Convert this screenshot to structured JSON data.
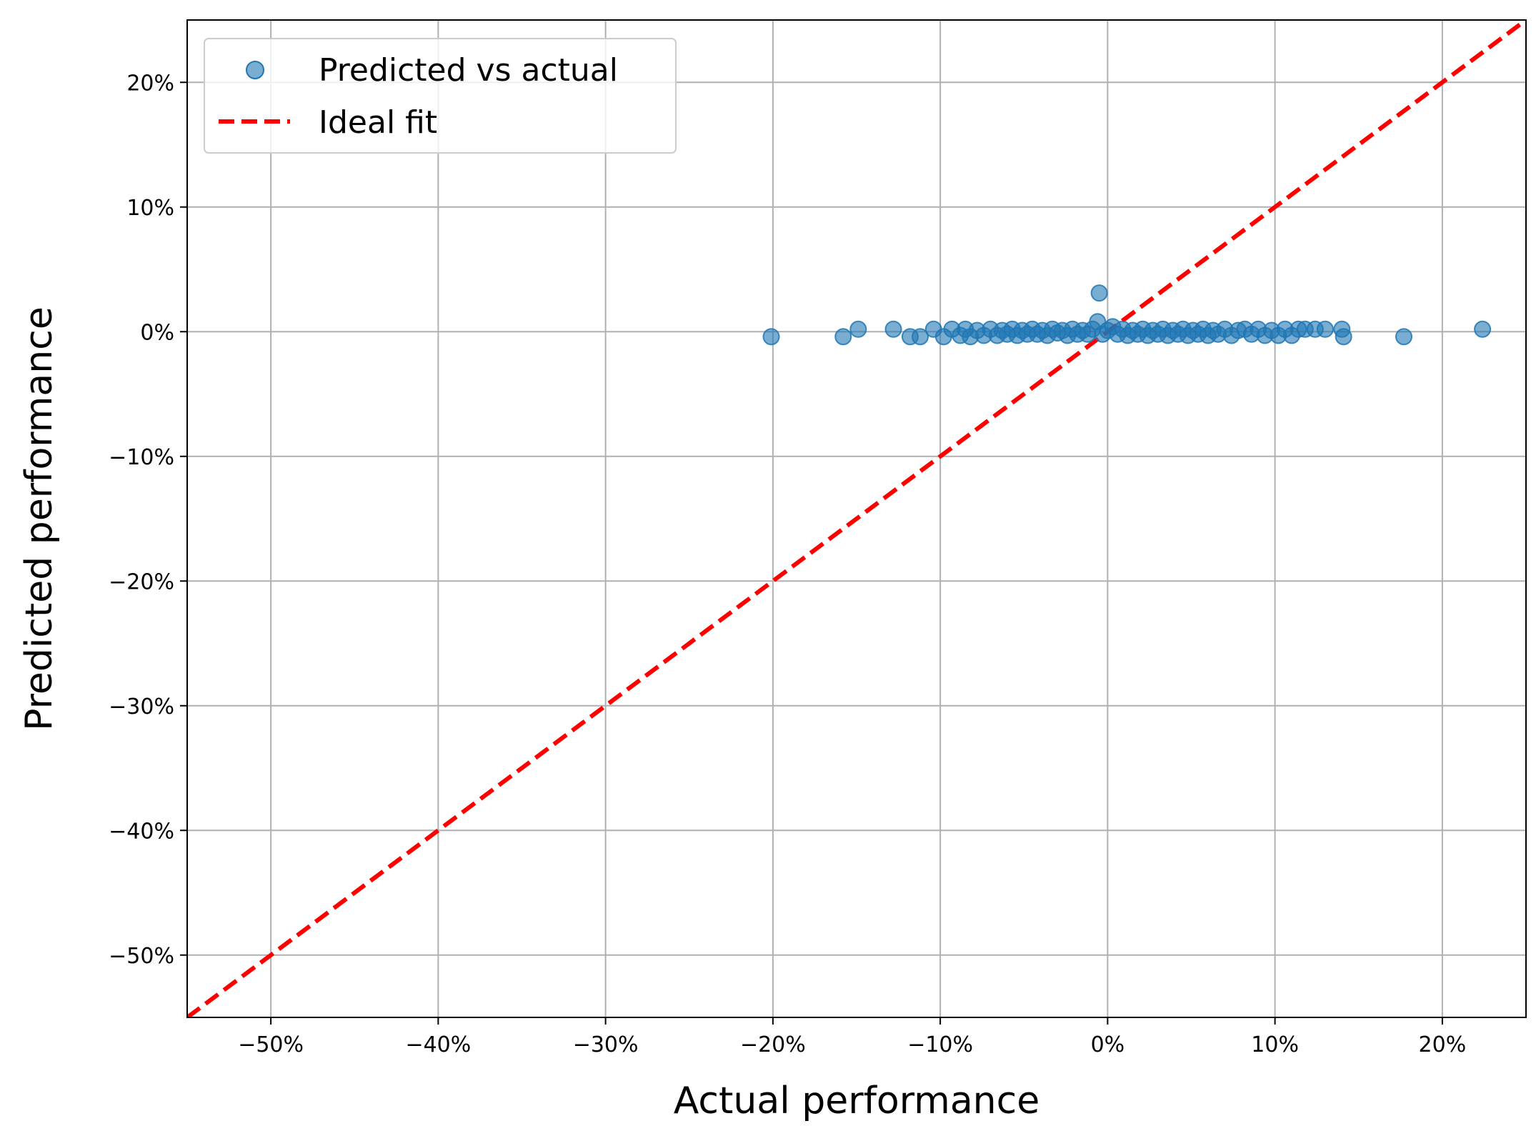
{
  "chart_data": {
    "type": "scatter",
    "xlabel": "Actual performance",
    "ylabel": "Predicted performance",
    "xlim": [
      -0.55,
      0.25
    ],
    "ylim": [
      -0.55,
      0.25
    ],
    "xticks": [
      -0.5,
      -0.4,
      -0.3,
      -0.2,
      -0.1,
      0.0,
      0.1,
      0.2
    ],
    "yticks": [
      -0.5,
      -0.4,
      -0.3,
      -0.2,
      -0.1,
      0.0,
      0.1,
      0.2
    ],
    "xtick_labels": [
      "−50%",
      "−40%",
      "−30%",
      "−20%",
      "−10%",
      "0%",
      "10%",
      "20%"
    ],
    "ytick_labels": [
      "−50%",
      "−40%",
      "−30%",
      "−20%",
      "−10%",
      "0%",
      "10%",
      "20%"
    ],
    "grid": true,
    "legend": {
      "placement": "top-left"
    },
    "colors": {
      "points": "#1f77b4",
      "ideal_line": "#ff0000",
      "grid": "#b0b0b0"
    },
    "series": [
      {
        "name": "Predicted vs actual",
        "kind": "scatter",
        "x": [
          -0.201,
          -0.158,
          -0.149,
          -0.128,
          -0.118,
          -0.112,
          -0.104,
          -0.098,
          -0.093,
          -0.088,
          -0.085,
          -0.082,
          -0.078,
          -0.074,
          -0.07,
          -0.066,
          -0.063,
          -0.06,
          -0.057,
          -0.054,
          -0.051,
          -0.048,
          -0.045,
          -0.042,
          -0.039,
          -0.036,
          -0.033,
          -0.03,
          -0.027,
          -0.024,
          -0.021,
          -0.018,
          -0.015,
          -0.012,
          -0.009,
          -0.006,
          -0.005,
          -0.003,
          0.0,
          0.003,
          0.006,
          0.009,
          0.012,
          0.015,
          0.018,
          0.021,
          0.024,
          0.027,
          0.03,
          0.033,
          0.036,
          0.039,
          0.042,
          0.045,
          0.048,
          0.051,
          0.054,
          0.057,
          0.06,
          0.063,
          0.066,
          0.07,
          0.074,
          0.078,
          0.082,
          0.086,
          0.09,
          0.094,
          0.098,
          0.102,
          0.106,
          0.11,
          0.114,
          0.118,
          0.124,
          0.13,
          0.14,
          0.141,
          0.177,
          0.224
        ],
        "y": [
          -0.004,
          -0.004,
          0.002,
          0.002,
          -0.004,
          -0.004,
          0.002,
          -0.004,
          0.002,
          -0.003,
          0.002,
          -0.004,
          0.001,
          -0.003,
          0.002,
          -0.003,
          0.001,
          -0.002,
          0.002,
          -0.003,
          0.001,
          -0.002,
          0.002,
          -0.002,
          0.001,
          -0.003,
          0.002,
          -0.001,
          0.001,
          -0.003,
          0.002,
          -0.002,
          0.001,
          -0.002,
          0.002,
          0.008,
          0.031,
          -0.002,
          0.001,
          0.004,
          -0.002,
          0.002,
          -0.003,
          0.001,
          -0.002,
          0.002,
          -0.003,
          0.001,
          -0.002,
          0.002,
          -0.003,
          0.001,
          -0.002,
          0.002,
          -0.003,
          0.001,
          -0.002,
          0.002,
          -0.003,
          0.001,
          -0.002,
          0.002,
          -0.003,
          0.001,
          0.002,
          -0.002,
          0.002,
          -0.003,
          0.001,
          -0.003,
          0.002,
          -0.003,
          0.002,
          0.002,
          0.002,
          0.002,
          0.002,
          -0.004,
          -0.004,
          0.002
        ]
      },
      {
        "name": "Ideal fit",
        "kind": "line",
        "style": "dashed",
        "x": [
          -0.55,
          0.25
        ],
        "y": [
          -0.55,
          0.25
        ]
      }
    ]
  }
}
